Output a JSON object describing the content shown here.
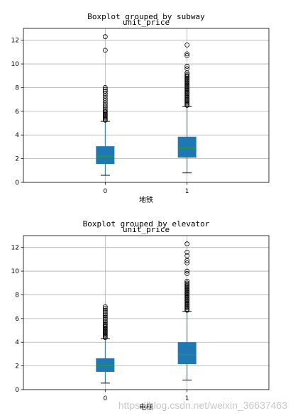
{
  "chart_data": [
    {
      "type": "boxplot",
      "suptitle": "Boxplot grouped by subway",
      "title": "unit_price",
      "xlabel": "地铁",
      "ylabel": "",
      "ylim": [
        0,
        13
      ],
      "yticks": [
        0,
        2,
        4,
        6,
        8,
        10,
        12
      ],
      "grid": true,
      "box_color": "#1f77b4",
      "median_color": "#2ca02c",
      "categories": [
        "0",
        "1"
      ],
      "boxes": [
        {
          "category": "0",
          "whisker_low": 0.6,
          "q1": 1.55,
          "median": 2.2,
          "q3": 3.05,
          "whisker_high": 5.15,
          "outliers": [
            5.25,
            5.35,
            5.45,
            5.55,
            5.65,
            5.75,
            5.85,
            5.95,
            6.05,
            6.2,
            6.35,
            6.5,
            6.7,
            6.9,
            7.1,
            7.3,
            7.5,
            7.7,
            7.85,
            8.0,
            11.15,
            12.3
          ]
        },
        {
          "category": "1",
          "whisker_low": 0.8,
          "q1": 2.1,
          "median": 2.9,
          "q3": 3.85,
          "whisker_high": 6.4,
          "outliers": [
            6.5,
            6.6,
            6.7,
            6.8,
            6.9,
            7.0,
            7.1,
            7.2,
            7.3,
            7.4,
            7.5,
            7.6,
            7.7,
            7.8,
            7.9,
            8.0,
            8.1,
            8.2,
            8.3,
            8.4,
            8.5,
            8.6,
            8.7,
            8.8,
            8.9,
            9.0,
            9.1,
            9.25,
            9.6,
            9.8,
            10.7,
            10.85,
            11.6
          ]
        }
      ]
    },
    {
      "type": "boxplot",
      "suptitle": "Boxplot grouped by elevator",
      "title": "unit_price",
      "xlabel": "电梯",
      "ylabel": "",
      "ylim": [
        0,
        13
      ],
      "yticks": [
        0,
        2,
        4,
        6,
        8,
        10,
        12
      ],
      "grid": true,
      "box_color": "#1f77b4",
      "median_color": "#2ca02c",
      "categories": [
        "0",
        "1"
      ],
      "boxes": [
        {
          "category": "0",
          "whisker_low": 0.55,
          "q1": 1.5,
          "median": 2.05,
          "q3": 2.65,
          "whisker_high": 4.3,
          "outliers": [
            4.4,
            4.5,
            4.6,
            4.7,
            4.8,
            4.9,
            5.0,
            5.1,
            5.2,
            5.3,
            5.4,
            5.5,
            5.65,
            5.8,
            5.95,
            6.1,
            6.25,
            6.4,
            6.55,
            6.7,
            6.85,
            7.0
          ]
        },
        {
          "category": "1",
          "whisker_low": 0.8,
          "q1": 2.15,
          "median": 2.95,
          "q3": 4.0,
          "whisker_high": 6.6,
          "outliers": [
            6.7,
            6.8,
            6.9,
            7.0,
            7.1,
            7.2,
            7.3,
            7.4,
            7.5,
            7.6,
            7.7,
            7.8,
            7.9,
            8.0,
            8.1,
            8.2,
            8.3,
            8.4,
            8.5,
            8.6,
            8.7,
            8.8,
            8.9,
            9.0,
            9.15,
            9.8,
            10.0,
            10.7,
            10.9,
            11.3,
            11.6,
            12.3
          ]
        }
      ]
    }
  ],
  "watermark": "https://blog.csdn.net/weixin_36637463"
}
